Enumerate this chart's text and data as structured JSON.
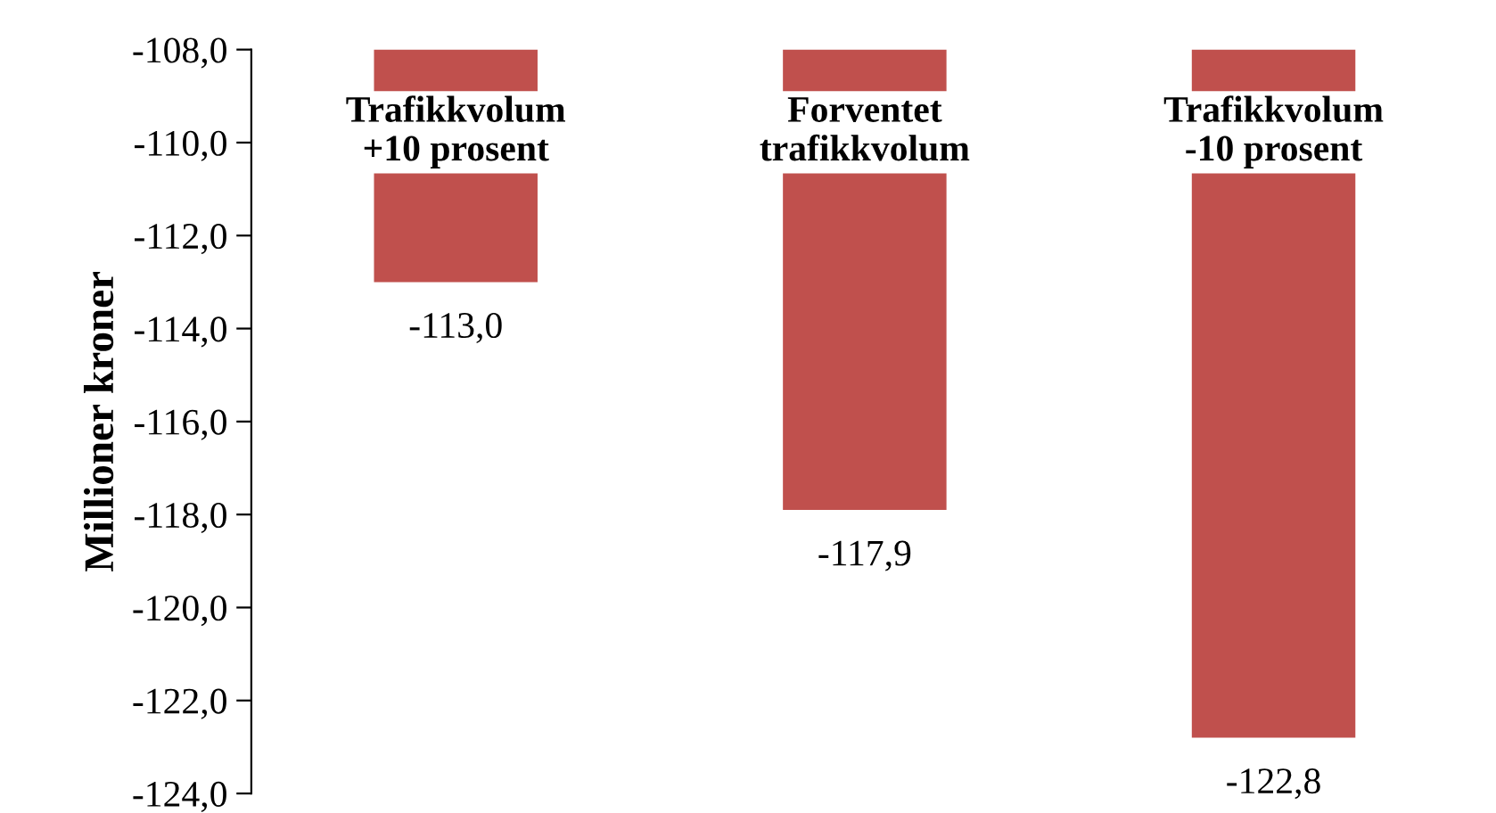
{
  "chart_data": {
    "type": "bar",
    "ylabel": "Millioner kroner",
    "categories": [
      "Trafikkvolum\n+10 prosent",
      "Forventet\ntrafikkvolum",
      "Trafikkvolum\n-10 prosent"
    ],
    "values": [
      -113.0,
      -117.9,
      -122.8
    ],
    "value_labels": [
      "-113,0",
      "-117,9",
      "-122,8"
    ],
    "color": "#c0504d",
    "ylim": [
      -124,
      -108
    ],
    "yticks": [
      {
        "value": -124,
        "label": "-124,0"
      },
      {
        "value": -122,
        "label": "-122,0"
      },
      {
        "value": -120,
        "label": "-120,0"
      },
      {
        "value": -118,
        "label": "-118,0"
      },
      {
        "value": -116,
        "label": "-116,0"
      },
      {
        "value": -114,
        "label": "-114,0"
      },
      {
        "value": -112,
        "label": "-112,0"
      },
      {
        "value": -110,
        "label": "-110,0"
      },
      {
        "value": -108,
        "label": "-108,0"
      }
    ],
    "grid": false,
    "legend": false
  }
}
